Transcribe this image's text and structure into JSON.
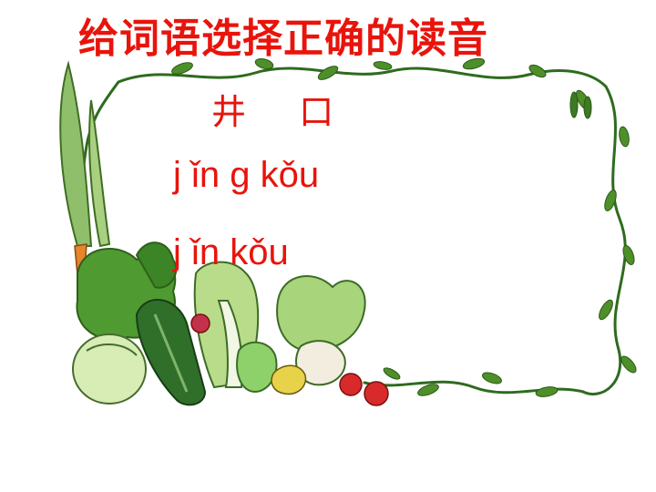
{
  "title": "给词语选择正确的读音",
  "word": [
    "井",
    "口"
  ],
  "options": [
    "j ǐn g kǒu",
    "j ǐn  kǒu"
  ]
}
